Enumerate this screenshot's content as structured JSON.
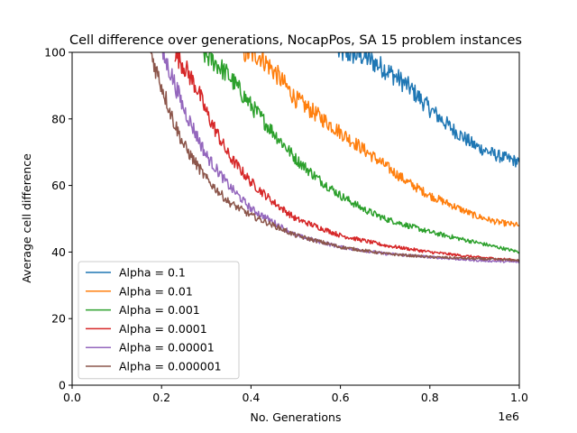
{
  "chart_data": {
    "type": "line",
    "title": "Cell difference over generations, NocapPos, SA 15 problem instances",
    "xlabel": "No. Generations",
    "ylabel": "Average cell difference",
    "x_offset_label": "1e6",
    "xlim": [
      0,
      1000000
    ],
    "ylim": [
      0,
      100
    ],
    "x_ticks": [
      0,
      200000,
      400000,
      600000,
      800000,
      1000000
    ],
    "x_tick_labels": [
      "0.0",
      "0.2",
      "0.4",
      "0.6",
      "0.8",
      "1.0"
    ],
    "y_ticks": [
      0,
      20,
      40,
      60,
      80,
      100
    ],
    "y_tick_labels": [
      "0",
      "20",
      "40",
      "60",
      "80",
      "100"
    ],
    "grid": false,
    "legend_position": "lower-left",
    "series": [
      {
        "name": "Alpha = 0.1",
        "color": "#1f77b4",
        "x": [
          595000,
          650000,
          700000,
          750000,
          800000,
          850000,
          900000,
          950000,
          1000000
        ],
        "y": [
          100,
          99,
          95,
          90,
          83,
          77,
          72,
          69,
          67
        ]
      },
      {
        "name": "Alpha = 0.01",
        "color": "#ff7f0e",
        "x": [
          380000,
          420000,
          460000,
          500000,
          550000,
          600000,
          650000,
          700000,
          750000,
          800000,
          850000,
          900000,
          950000,
          1000000
        ],
        "y": [
          100,
          99,
          93,
          86,
          81,
          76,
          71,
          66,
          61,
          57,
          54,
          51,
          49,
          48
        ]
      },
      {
        "name": "Alpha = 0.001",
        "color": "#2ca02c",
        "x": [
          290000,
          320000,
          350000,
          400000,
          450000,
          500000,
          550000,
          600000,
          650000,
          700000,
          800000,
          900000,
          1000000
        ],
        "y": [
          100,
          97,
          93,
          84,
          76,
          68,
          62,
          57,
          53,
          50,
          46,
          43,
          40
        ]
      },
      {
        "name": "Alpha = 0.0001",
        "color": "#d62728",
        "x": [
          230000,
          250000,
          280000,
          300000,
          350000,
          400000,
          450000,
          500000,
          600000,
          700000,
          800000,
          900000,
          1000000
        ],
        "y": [
          100,
          96,
          89,
          82,
          69,
          61,
          55,
          50,
          45,
          42,
          40,
          38.5,
          37.5
        ]
      },
      {
        "name": "Alpha = 0.00001",
        "color": "#9467bd",
        "x": [
          200000,
          220000,
          250000,
          300000,
          350000,
          400000,
          450000,
          500000,
          600000,
          700000,
          800000,
          900000,
          1000000
        ],
        "y": [
          100,
          94,
          83,
          69,
          60,
          53,
          49,
          45,
          41.5,
          39.5,
          38.5,
          37.5,
          37
        ]
      },
      {
        "name": "Alpha = 0.000001",
        "color": "#8c564b",
        "x": [
          175000,
          200000,
          225000,
          250000,
          300000,
          350000,
          400000,
          450000,
          500000,
          600000,
          700000,
          800000,
          900000,
          1000000
        ],
        "y": [
          100,
          90,
          80,
          72,
          62,
          55,
          51,
          48,
          45,
          41.5,
          39.5,
          38.5,
          38,
          37.5
        ]
      }
    ]
  }
}
